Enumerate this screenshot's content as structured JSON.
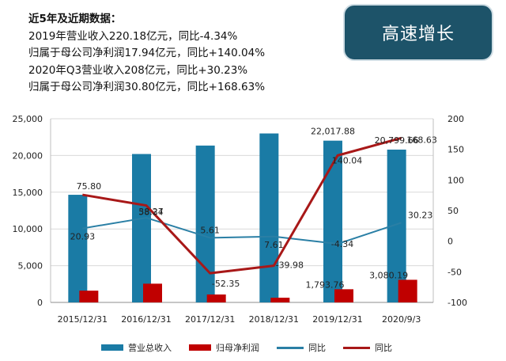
{
  "summary": {
    "heading": "近5年及近期数据：",
    "lines": [
      "2019年营业收入220.18亿元，同比-4.34%",
      "归属于母公司净利润17.94亿元，同比+140.04%",
      "2020年Q3营业收入208亿元，同比+30.23%",
      "归属于母公司净利润30.80亿元，同比+168.63%"
    ]
  },
  "badge": {
    "label": "高速增长"
  },
  "colors": {
    "revenue_bar": "#1a7ba5",
    "profit_bar": "#c00000",
    "revenue_line": "#2a7fa5",
    "profit_line": "#a81818",
    "badge_bg": "#1d5369"
  },
  "chart_data": {
    "type": "bar",
    "categories": [
      "2015/12/31",
      "2016/12/31",
      "2017/12/31",
      "2018/12/31",
      "2019/12/31",
      "2020/9/3"
    ],
    "left_axis": {
      "min": 0,
      "max": 25000,
      "ticks": [
        "0",
        "5,000",
        "10,000",
        "15,000",
        "20,000",
        "25,000"
      ]
    },
    "right_axis": {
      "min": -100,
      "max": 200,
      "ticks": [
        "-100",
        "-50",
        "0",
        "50",
        "100",
        "150",
        "200"
      ]
    },
    "grid": "horizontal",
    "legend_position": "bottom",
    "series": [
      {
        "name": "营业总收入",
        "kind": "bar",
        "axis": "left",
        "values": [
          14650,
          20200,
          21350,
          23000,
          22017.88,
          20799.66
        ],
        "labels": [
          "",
          "",
          "",
          "",
          "22,017.88",
          "20,799.66"
        ]
      },
      {
        "name": "归母净利润",
        "kind": "bar",
        "axis": "left",
        "values": [
          1600,
          2550,
          1080,
          640,
          1793.76,
          3080.19
        ],
        "labels": [
          "",
          "",
          "",
          "",
          "1,793.76",
          "3,080.19"
        ]
      },
      {
        "name": "同比",
        "kind": "line",
        "axis": "right",
        "values": [
          20.93,
          38.27,
          5.61,
          7.61,
          -4.34,
          30.23
        ],
        "labels": [
          "20.93",
          "38.27",
          "5.61",
          "7.61",
          "-4.34",
          "30.23"
        ]
      },
      {
        "name": "同比",
        "kind": "line",
        "axis": "right",
        "values": [
          75.8,
          58.34,
          -52.35,
          -39.98,
          140.04,
          168.63
        ],
        "labels": [
          "75.80",
          "58.34",
          "-52.35",
          "-39.98",
          "140.04",
          "168.63"
        ]
      }
    ]
  }
}
